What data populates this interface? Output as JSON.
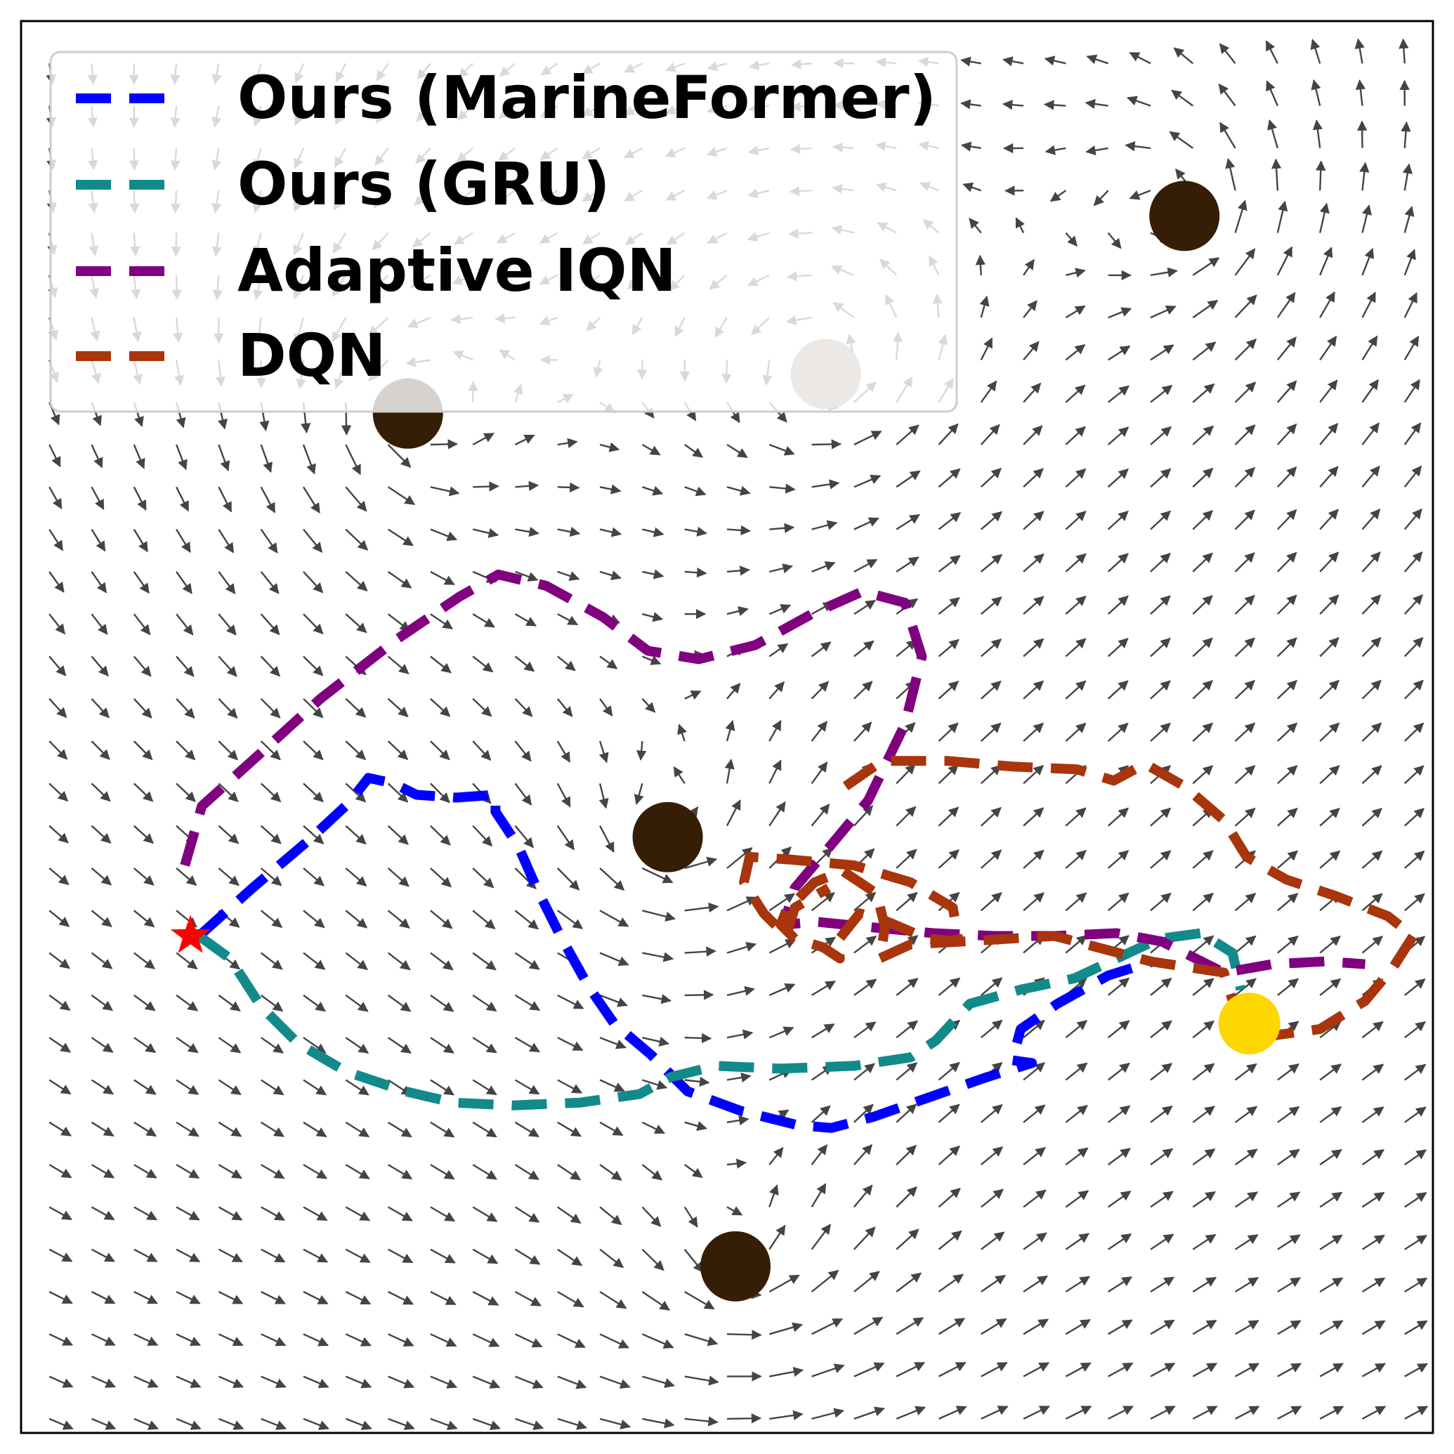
{
  "chart_data": {
    "type": "line",
    "subtype": "trajectory plot over a vector (current) field",
    "title": "",
    "xlabel": "",
    "ylabel": "",
    "xlim": [
      0,
      50
    ],
    "ylim": [
      0,
      50
    ],
    "ticks_shown": false,
    "grid": false,
    "legend": {
      "placement": "top-left",
      "frame": true
    },
    "series": [
      {
        "name": "Ours (MarineFormer)",
        "color": "#0000ff",
        "style": "dashed",
        "points": [
          [
            6.3,
            17.6
          ],
          [
            8.2,
            19.3
          ],
          [
            10.2,
            21.0
          ],
          [
            11.6,
            22.3
          ],
          [
            12.3,
            23.2
          ],
          [
            13.2,
            23.0
          ],
          [
            14.0,
            22.6
          ],
          [
            15.4,
            22.5
          ],
          [
            16.8,
            22.6
          ],
          [
            16.8,
            22.0
          ],
          [
            17.6,
            20.8
          ],
          [
            18.3,
            19.2
          ],
          [
            19.1,
            17.6
          ],
          [
            20.1,
            15.8
          ],
          [
            21.0,
            14.5
          ],
          [
            22.3,
            13.4
          ],
          [
            23.6,
            12.1
          ],
          [
            25.5,
            11.4
          ],
          [
            27.5,
            10.9
          ],
          [
            28.7,
            10.8
          ],
          [
            30.2,
            11.2
          ],
          [
            32.2,
            11.9
          ],
          [
            34.2,
            12.6
          ],
          [
            35.8,
            13.1
          ],
          [
            35.1,
            13.2
          ],
          [
            35.4,
            14.3
          ],
          [
            36.7,
            15.2
          ],
          [
            38.5,
            16.2
          ],
          [
            40.1,
            16.7
          ]
        ]
      },
      {
        "name": "Ours (GRU)",
        "color": "#128a8a",
        "style": "dashed",
        "points": [
          [
            6.3,
            17.6
          ],
          [
            7.4,
            16.8
          ],
          [
            8.5,
            15.1
          ],
          [
            9.8,
            13.8
          ],
          [
            11.5,
            12.8
          ],
          [
            13.6,
            12.1
          ],
          [
            15.3,
            11.7
          ],
          [
            17.4,
            11.6
          ],
          [
            19.8,
            11.7
          ],
          [
            21.9,
            12.0
          ],
          [
            23.0,
            12.6
          ],
          [
            24.6,
            13.0
          ],
          [
            26.9,
            12.9
          ],
          [
            29.5,
            13.0
          ],
          [
            31.5,
            13.3
          ],
          [
            32.4,
            13.9
          ],
          [
            33.6,
            15.2
          ],
          [
            35.4,
            15.7
          ],
          [
            37.3,
            16.1
          ],
          [
            38.8,
            16.8
          ],
          [
            40.3,
            17.5
          ],
          [
            41.8,
            17.7
          ],
          [
            42.9,
            17.0
          ],
          [
            43.2,
            15.7
          ]
        ]
      },
      {
        "name": "Adaptive IQN",
        "color": "#800080",
        "style": "dashed",
        "points": [
          [
            5.8,
            20.1
          ],
          [
            6.4,
            22.2
          ],
          [
            8.4,
            24.0
          ],
          [
            10.6,
            26.0
          ],
          [
            13.3,
            28.1
          ],
          [
            15.5,
            29.6
          ],
          [
            16.9,
            30.4
          ],
          [
            18.6,
            30.0
          ],
          [
            20.6,
            28.9
          ],
          [
            22.2,
            27.7
          ],
          [
            24.0,
            27.4
          ],
          [
            26.0,
            27.9
          ],
          [
            28.0,
            29.0
          ],
          [
            29.8,
            29.8
          ],
          [
            31.3,
            29.4
          ],
          [
            31.9,
            27.5
          ],
          [
            31.3,
            25.1
          ],
          [
            30.0,
            22.4
          ],
          [
            28.5,
            20.6
          ],
          [
            27.4,
            19.3
          ],
          [
            27.0,
            18.0
          ],
          [
            28.2,
            18.1
          ],
          [
            30.2,
            17.9
          ],
          [
            32.3,
            17.7
          ],
          [
            34.5,
            17.6
          ],
          [
            36.6,
            17.6
          ],
          [
            38.8,
            17.7
          ],
          [
            40.4,
            17.4
          ],
          [
            41.4,
            16.9
          ],
          [
            42.6,
            16.3
          ],
          [
            44.3,
            16.6
          ],
          [
            46.2,
            16.7
          ],
          [
            47.6,
            16.6
          ]
        ]
      },
      {
        "name": "DQN",
        "color": "#a8350b",
        "style": "dashed",
        "points": [
          [
            29.2,
            22.9
          ],
          [
            30.5,
            23.8
          ],
          [
            32.8,
            23.8
          ],
          [
            35.1,
            23.6
          ],
          [
            37.4,
            23.5
          ],
          [
            38.7,
            23.1
          ],
          [
            39.8,
            23.7
          ],
          [
            41.2,
            22.9
          ],
          [
            42.6,
            21.7
          ],
          [
            43.4,
            20.4
          ],
          [
            44.8,
            19.6
          ],
          [
            46.6,
            19.0
          ],
          [
            48.4,
            18.3
          ],
          [
            49.3,
            17.6
          ],
          [
            48.6,
            16.5
          ],
          [
            47.6,
            15.3
          ],
          [
            46.0,
            14.3
          ],
          [
            43.8,
            14.0
          ],
          [
            43.0,
            15.0
          ],
          [
            42.6,
            16.3
          ],
          [
            40.0,
            16.7
          ],
          [
            36.6,
            17.6
          ],
          [
            33.3,
            17.4
          ],
          [
            31.5,
            17.3
          ],
          [
            30.4,
            16.8
          ],
          [
            30.6,
            17.9
          ],
          [
            30.3,
            19.1
          ],
          [
            29.1,
            19.9
          ],
          [
            28.1,
            19.5
          ],
          [
            27.1,
            18.5
          ],
          [
            26.9,
            18.0
          ],
          [
            27.4,
            17.5
          ],
          [
            28.4,
            17.2
          ],
          [
            29.0,
            16.8
          ],
          [
            28.9,
            17.4
          ],
          [
            29.7,
            18.4
          ],
          [
            30.7,
            18.1
          ],
          [
            32.1,
            17.5
          ],
          [
            33.2,
            17.4
          ],
          [
            33.0,
            18.6
          ],
          [
            31.5,
            19.5
          ],
          [
            29.5,
            20.1
          ],
          [
            27.3,
            20.3
          ],
          [
            25.8,
            20.4
          ],
          [
            25.6,
            19.5
          ],
          [
            26.3,
            18.4
          ],
          [
            27.1,
            17.6
          ],
          [
            27.4,
            18.6
          ],
          [
            28.6,
            19.3
          ]
        ]
      }
    ],
    "markers": [
      {
        "role": "start",
        "shape": "star",
        "color": "#ff0000",
        "x": 6.0,
        "y": 17.6
      },
      {
        "role": "goal",
        "shape": "circle",
        "color": "#ffd700",
        "x": 43.5,
        "y": 14.5
      }
    ],
    "obstacles": [
      {
        "x": 13.7,
        "y": 36.1,
        "color": "#351e05"
      },
      {
        "x": 28.5,
        "y": 37.5,
        "color": "#9c8d81"
      },
      {
        "x": 41.2,
        "y": 43.1,
        "color": "#351e05"
      },
      {
        "x": 22.9,
        "y": 21.1,
        "color": "#351e05"
      },
      {
        "x": 25.3,
        "y": 5.9,
        "color": "#351e05"
      }
    ],
    "vector_field": {
      "color": "#444444",
      "description": "background quiver of ocean currents, mostly pointing right with vortices near the obstacles"
    }
  }
}
